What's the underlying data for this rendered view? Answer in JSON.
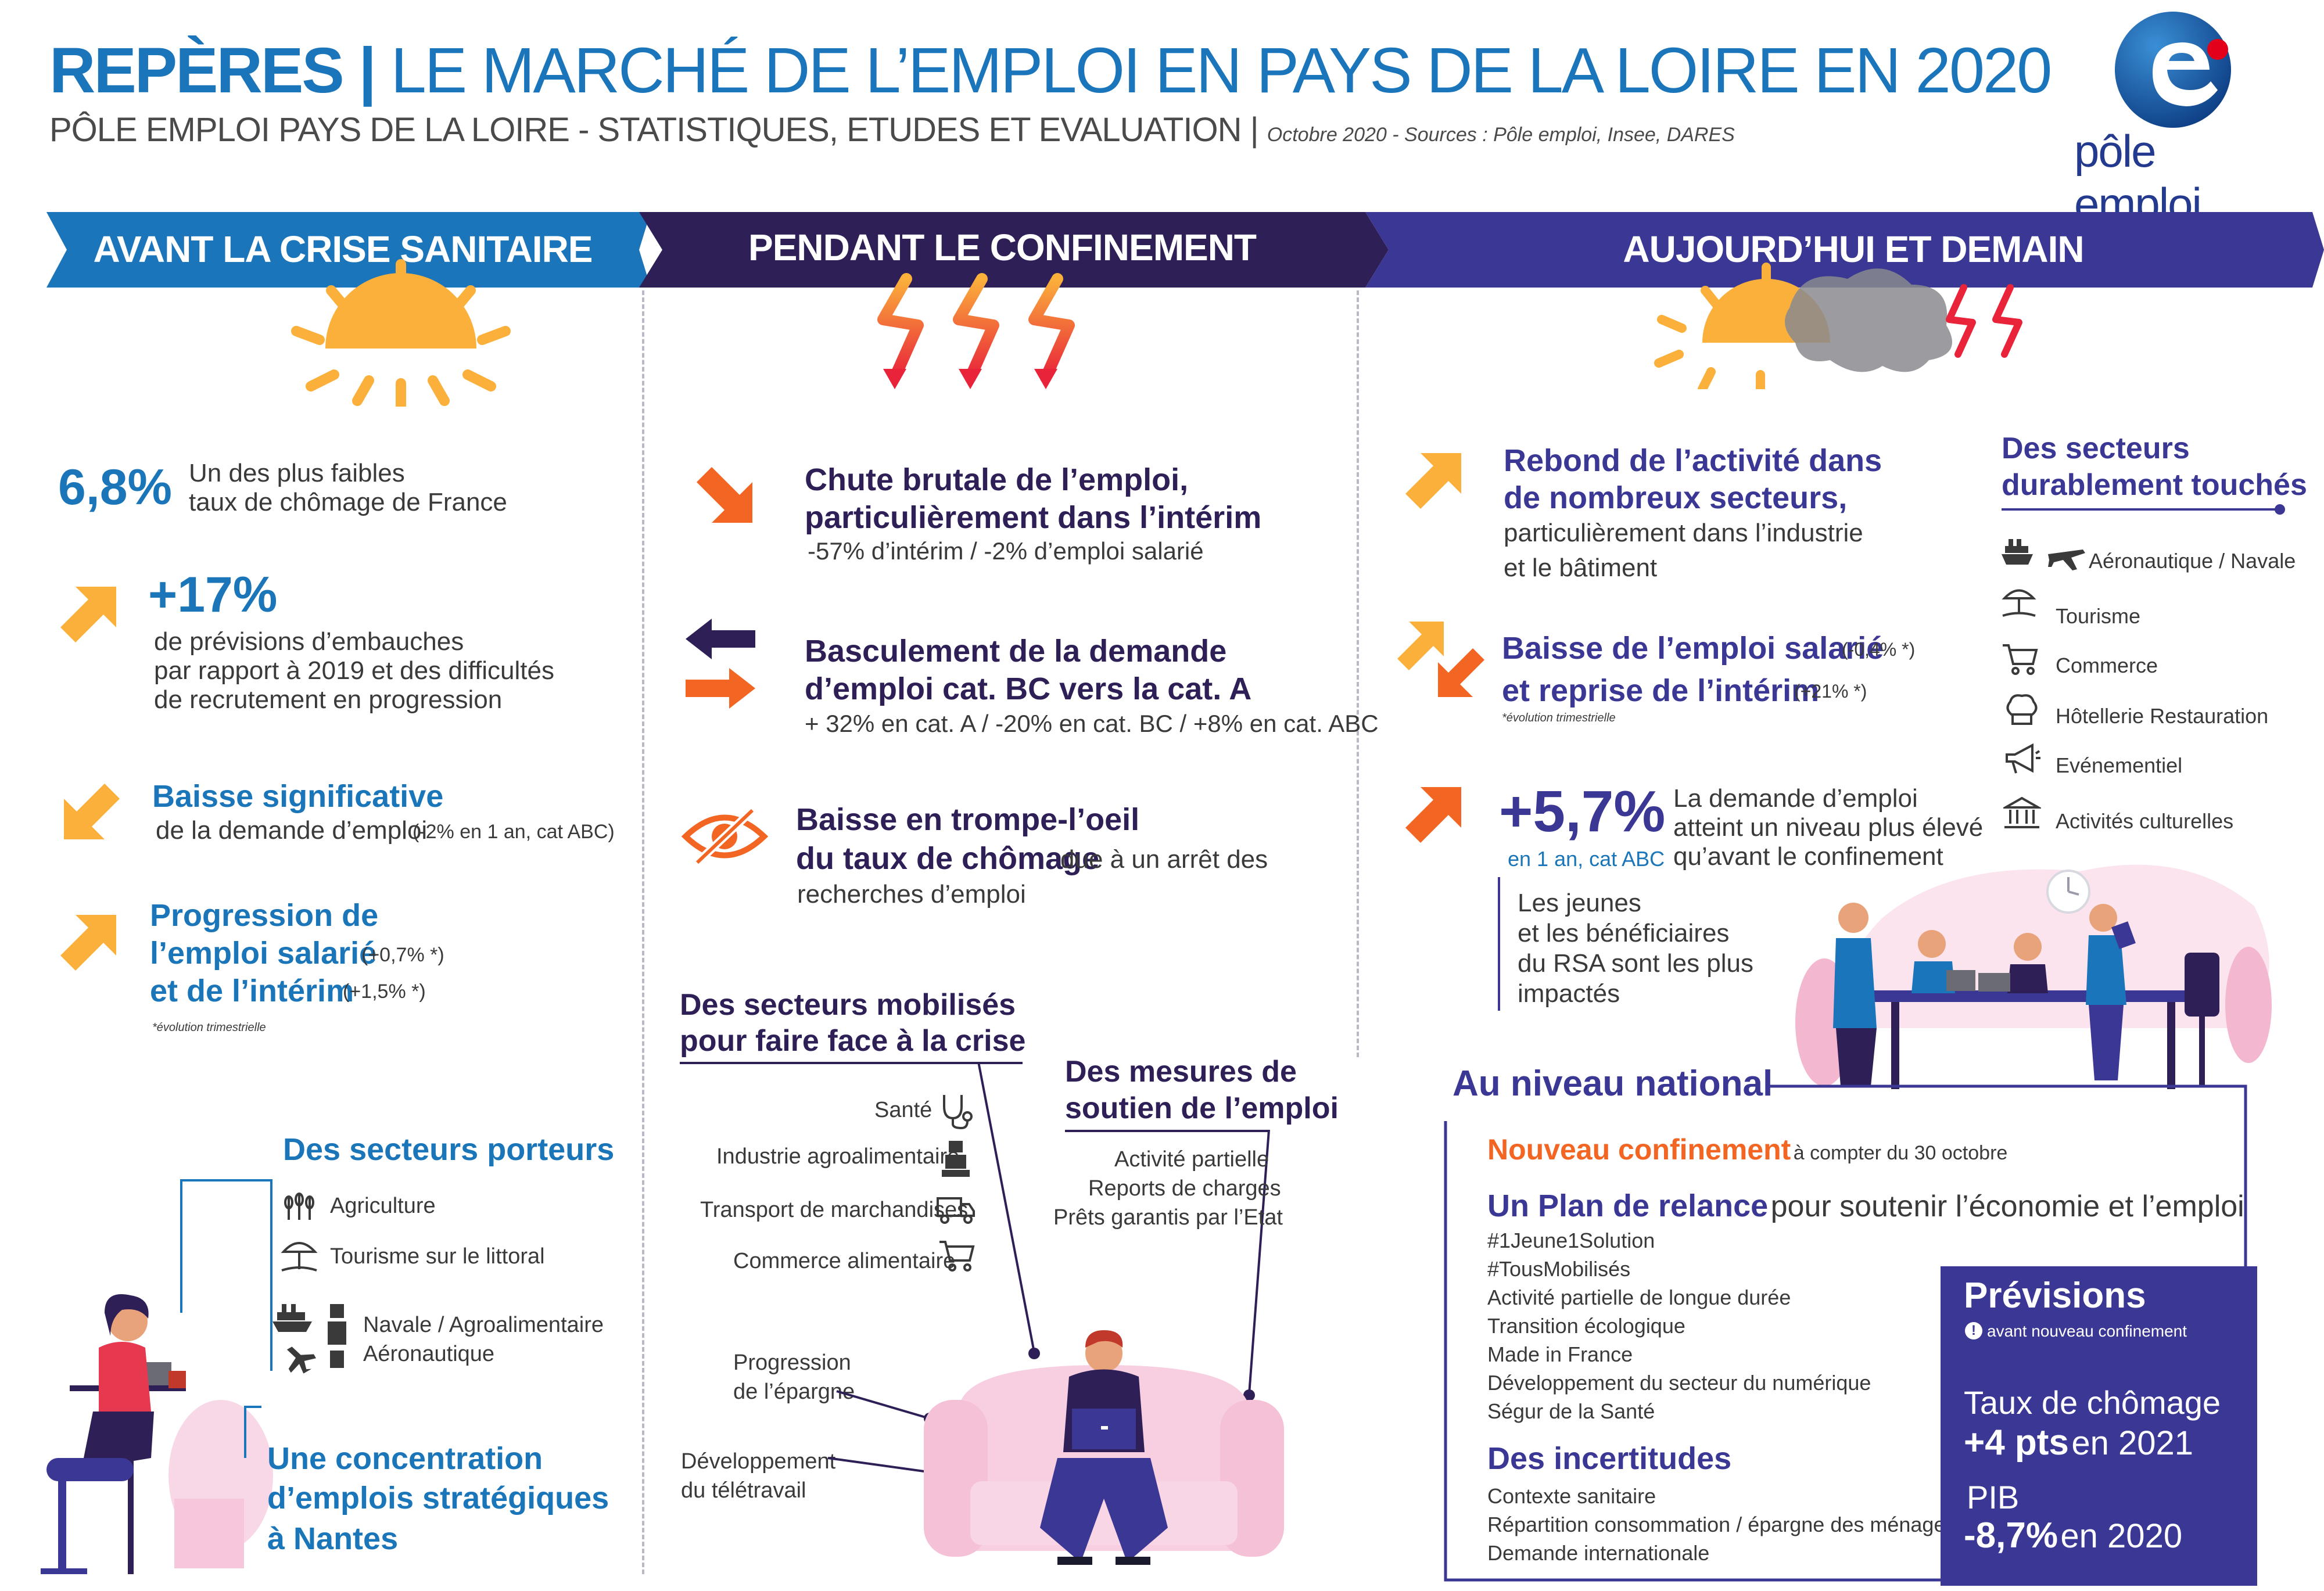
{
  "header": {
    "title_strong": "REPÈRES |",
    "title_rest": "LE MARCHÉ DE L’EMPLOI EN PAYS DE LA LOIRE EN 2020",
    "subtitle": "PÔLE EMPLOI PAYS DE LA LOIRE - STATISTIQUES, ETUDES ET EVALUATION |",
    "sources": "Octobre 2020 - Sources : Pôle emploi, Insee, DARES",
    "logo_text": "pôle emploi"
  },
  "banners": {
    "before": "AVANT LA CRISE SANITAIRE",
    "during": "PENDANT LE CONFINEMENT",
    "after": "AUJOURD’HUI ET DEMAIN"
  },
  "before": {
    "rate_value": "6,8%",
    "rate_text_1": "Un des plus faibles",
    "rate_text_2": "taux de chômage de France",
    "hiring_value": "+17%",
    "hiring_text_1": "de prévisions d’embauches",
    "hiring_text_2": "par rapport à 2019 et des difficultés",
    "hiring_text_3": "de recrutement en progression",
    "decline_title": "Baisse significative",
    "decline_text": "de la demande d’emploi",
    "decline_note": "(-2% en 1 an, cat ABC)",
    "growth_title_1": "Progression de",
    "growth_title_2": "l’emploi salarié",
    "growth_note_2": "(+0,7% *)",
    "growth_title_3": "et de l’intérim",
    "growth_note_3": "(+1,5% *)",
    "footnote": "*évolution trimestrielle",
    "sectors_title": "Des secteurs porteurs",
    "sectors": [
      "Agriculture",
      "Tourisme sur le littoral",
      "Navale / Agroalimentaire",
      "Aéronautique"
    ],
    "nantes_1": "Une concentration",
    "nantes_2": "d’emplois stratégiques",
    "nantes_3": "à Nantes"
  },
  "during": {
    "drop_title_1": "Chute brutale de l’emploi,",
    "drop_title_2": "particulièrement dans l’intérim",
    "drop_text": "-57% d’intérim / -2% d’emploi salarié",
    "switch_title_1": "Basculement de la demande",
    "switch_title_2": "d’emploi cat. BC vers la cat. A",
    "switch_text": "+ 32% en cat. A / -20% en cat. BC / +8% en cat. ABC",
    "illusion_title_1": "Baisse en trompe-l’oeil",
    "illusion_title_2": "du taux de chômage",
    "illusion_text_2": "due à un arrêt des",
    "illusion_text_3": "recherches d’emploi",
    "mobilized_title_1": "Des secteurs mobilisés",
    "mobilized_title_2": "pour faire face à la crise",
    "mobilized": [
      "Santé",
      "Industrie agroalimentaire",
      "Transport de marchandises",
      "Commerce alimentaire"
    ],
    "measures_title_1": "Des mesures de",
    "measures_title_2": "soutien de l’emploi",
    "measures": [
      "Activité partielle",
      "Reports de charges",
      "Prêts garantis par l’Etat"
    ],
    "savings_1": "Progression",
    "savings_2": "de l’épargne",
    "remote_1": "Développement",
    "remote_2": "du télétravail"
  },
  "after": {
    "rebound_title_1": "Rebond de l’activité dans",
    "rebound_title_2": "de nombreux secteurs,",
    "rebound_text_1": "particulièrement dans l’industrie",
    "rebound_text_2": "et le bâtiment",
    "salaried_title_1": "Baisse de l’emploi salarié",
    "salaried_note_1": "(-0,4% *)",
    "salaried_title_2": "et reprise de l’intérim",
    "salaried_note_2": "(+21% *)",
    "footnote": "*évolution trimestrielle",
    "demand_value": "+5,7%",
    "demand_sub": "en 1 an, cat ABC",
    "demand_text_1": "La demande d’emploi",
    "demand_text_2": "atteint un niveau plus élevé",
    "demand_text_3": "qu’avant le confinement",
    "youth_1": "Les jeunes",
    "youth_2": "et les bénéficiaires",
    "youth_3": "du RSA sont les plus",
    "youth_4": "impactés",
    "affected_title_1": "Des secteurs",
    "affected_title_2": "durablement touchés",
    "affected": [
      "Aéronautique / Navale",
      "Tourisme",
      "Commerce",
      "Hôtellerie Restauration",
      "Evénementiel",
      "Activités culturelles"
    ]
  },
  "national": {
    "title": "Au niveau national",
    "lockdown_title": "Nouveau confinement",
    "lockdown_text": "à compter du 30 octobre",
    "plan_title": "Un Plan de relance",
    "plan_text": "pour soutenir l’économie et l’emploi",
    "plan_items": [
      "#1Jeune1Solution",
      "#TousMobilisés",
      "Activité partielle de longue durée",
      "Transition écologique",
      "Made in France",
      "Développement du secteur du numérique",
      "Ségur de la Santé"
    ],
    "uncertain_title": "Des incertitudes",
    "uncertain_items": [
      "Contexte sanitaire",
      "Répartition consommation / épargne des ménages",
      "Demande internationale"
    ],
    "forecast_title": "Prévisions",
    "forecast_note": "avant nouveau confinement",
    "forecast_rate_label": "Taux de chômage",
    "forecast_rate_value": "+4 pts",
    "forecast_rate_year": "en 2021",
    "forecast_gdp_label": "PIB",
    "forecast_gdp_value": "-8,7%",
    "forecast_gdp_year": "en 2020"
  },
  "colors": {
    "blue": "#1b75bb",
    "navy": "#2e1f56",
    "indigo": "#3b3794",
    "orange": "#f26522",
    "yellow": "#fbb03b"
  }
}
